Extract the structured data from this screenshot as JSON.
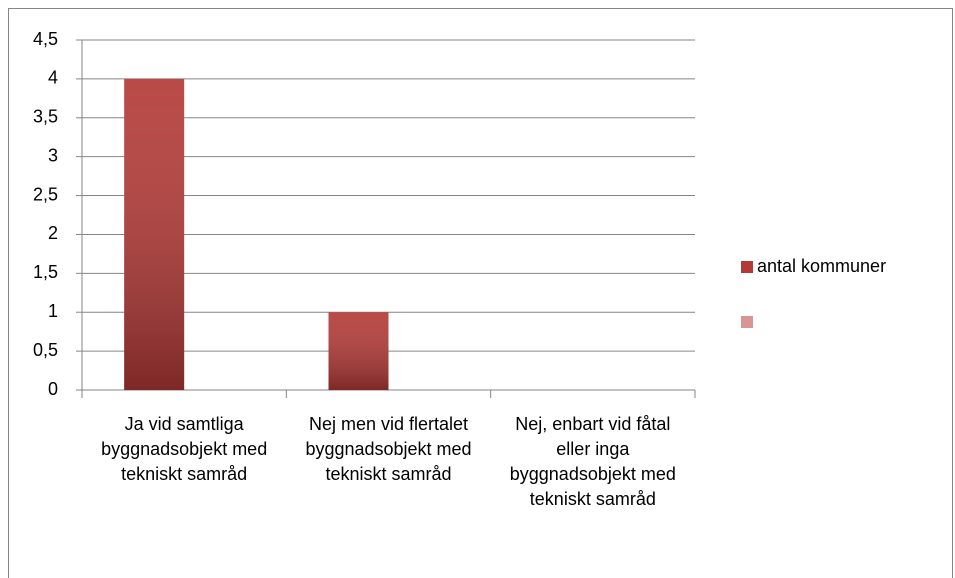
{
  "chart_data": {
    "type": "bar",
    "categories": [
      "Ja vid samtliga byggnadsobjekt med tekniskt samråd",
      "Nej men vid flertalet byggnadsobjekt med tekniskt samråd",
      "Nej, enbart vid fåtal eller inga byggnadsobjekt med tekniskt samråd"
    ],
    "series": [
      {
        "name": "antal kommuner",
        "color": "#b33a37",
        "values": [
          4,
          1,
          0
        ]
      },
      {
        "color": "#d99594",
        "values": [
          null,
          null,
          null
        ]
      }
    ],
    "ylim": [
      0,
      4.5
    ],
    "yticks": [
      0,
      {
        "value": 0.5,
        "label": "0,5"
      },
      1,
      {
        "value": 1.5,
        "label": "1,5"
      },
      2,
      {
        "value": 2.5,
        "label": "2,5"
      },
      3,
      {
        "value": 3.5,
        "label": "3,5"
      },
      4,
      {
        "value": 4.5,
        "label": "4,5"
      }
    ],
    "grid": true,
    "legend": "right"
  }
}
